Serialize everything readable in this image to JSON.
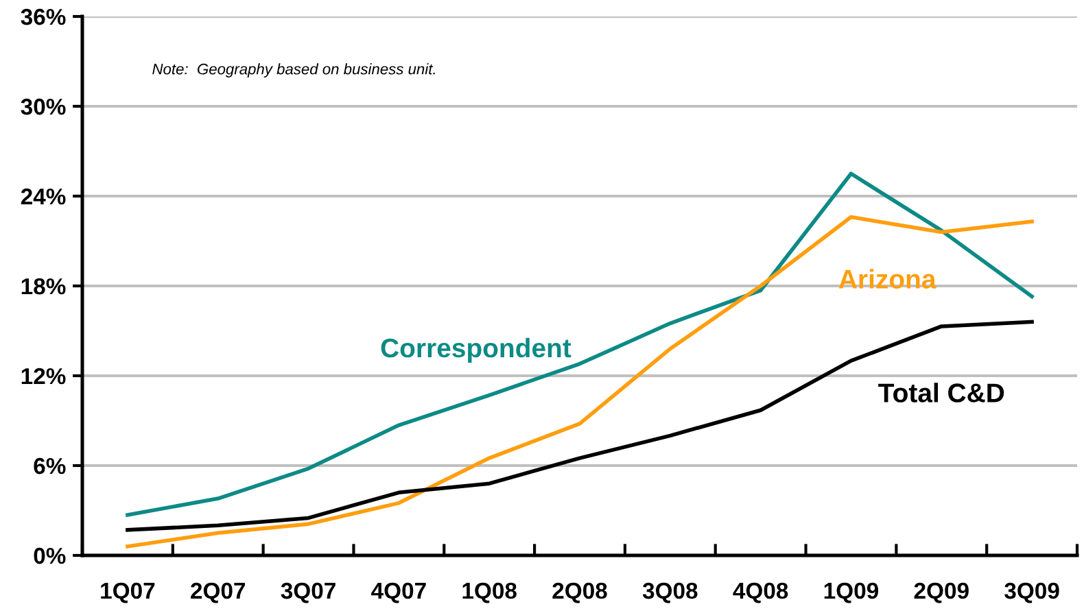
{
  "chart_data": {
    "type": "line",
    "categories": [
      "1Q07",
      "2Q07",
      "3Q07",
      "4Q07",
      "1Q08",
      "2Q08",
      "3Q08",
      "4Q08",
      "1Q09",
      "2Q09",
      "3Q09"
    ],
    "series": [
      {
        "name": "Correspondent",
        "color": "#0e8a86",
        "values": [
          2.7,
          3.8,
          5.8,
          8.7,
          10.7,
          12.8,
          15.5,
          17.7,
          25.5,
          21.7,
          17.3
        ]
      },
      {
        "name": "Arizona",
        "color": "#ff9e0f",
        "values": [
          0.6,
          1.5,
          2.1,
          3.5,
          6.5,
          8.8,
          13.8,
          18.0,
          22.6,
          21.6,
          22.3
        ]
      },
      {
        "name": "Total C&D",
        "color": "#000000",
        "values": [
          1.7,
          2.0,
          2.5,
          4.2,
          4.8,
          6.5,
          8.0,
          9.7,
          13.0,
          15.3,
          15.6
        ]
      }
    ],
    "ylim": [
      0,
      36
    ],
    "yticks": [
      {
        "value": 0,
        "label": "0%"
      },
      {
        "value": 6,
        "label": "6%"
      },
      {
        "value": 12,
        "label": "12%"
      },
      {
        "value": 18,
        "label": "18%"
      },
      {
        "value": 24,
        "label": "24%"
      },
      {
        "value": 30,
        "label": "30%"
      },
      {
        "value": 36,
        "label": "36%"
      }
    ],
    "grid": "y",
    "legend": false,
    "marker": "none",
    "line_style": "solid",
    "annotations": [
      "Note:  Geography based on business unit."
    ]
  }
}
